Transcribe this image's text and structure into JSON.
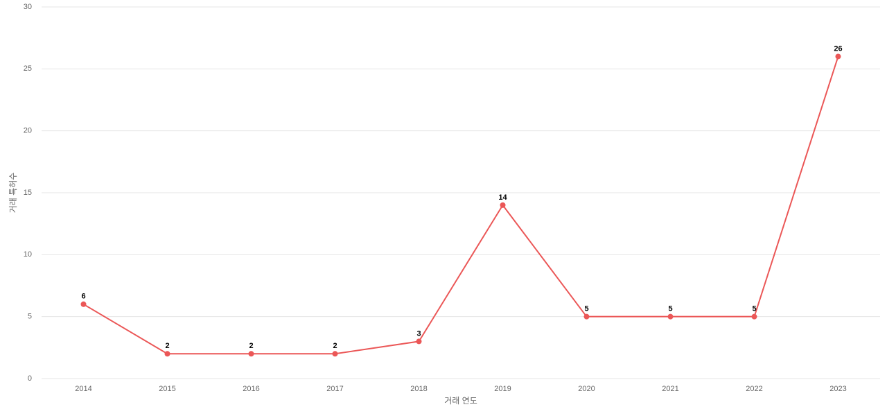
{
  "chart_data": {
    "type": "line",
    "x_label": "거래 연도",
    "y_label": "거래 특허수",
    "categories": [
      "2014",
      "2015",
      "2016",
      "2017",
      "2018",
      "2019",
      "2020",
      "2021",
      "2022",
      "2023"
    ],
    "series": [
      {
        "color": "#eb5757",
        "values": [
          6,
          2,
          2,
          2,
          3,
          14,
          5,
          5,
          5,
          26
        ]
      }
    ],
    "ylim": [
      0,
      30
    ],
    "yticks": [
      0,
      5,
      10,
      15,
      20,
      25,
      30
    ],
    "grid": true,
    "data_labels": true
  }
}
